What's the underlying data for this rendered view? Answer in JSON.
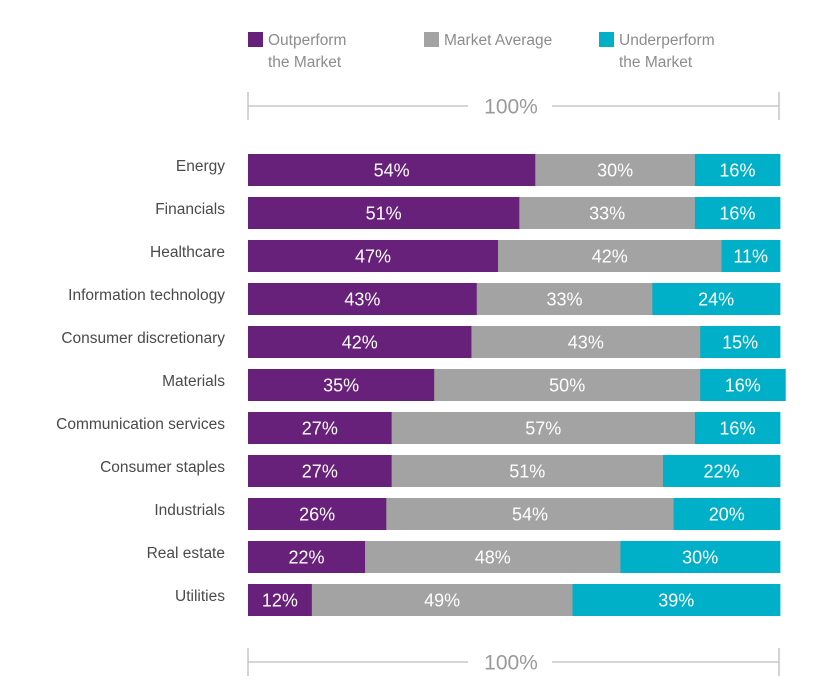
{
  "chart_data": {
    "type": "bar",
    "orientation": "horizontal",
    "stacked": true,
    "categories": [
      "Energy",
      "Financials",
      "Healthcare",
      "Information technology",
      "Consumer discretionary",
      "Materials",
      "Communication services",
      "Consumer staples",
      "Industrials",
      "Real estate",
      "Utilities"
    ],
    "series": [
      {
        "name": "Outperform the Market",
        "name_lines": [
          "Outperform",
          "the Market"
        ],
        "color": "#68217a",
        "values": [
          54,
          51,
          47,
          43,
          42,
          35,
          27,
          27,
          26,
          22,
          12
        ]
      },
      {
        "name": "Market Average",
        "name_lines": [
          "Market Average"
        ],
        "color": "#a3a3a3",
        "values": [
          30,
          33,
          42,
          33,
          43,
          50,
          57,
          51,
          54,
          48,
          49
        ]
      },
      {
        "name": "Underperform the Market",
        "name_lines": [
          "Underperform",
          "the Market"
        ],
        "color": "#00b0c8",
        "values": [
          16,
          16,
          11,
          24,
          15,
          16,
          16,
          22,
          20,
          30,
          39
        ]
      }
    ],
    "unit": "%",
    "xlim": [
      0,
      100
    ],
    "scale_label": "100%",
    "legend_position": "top",
    "grid": false
  }
}
